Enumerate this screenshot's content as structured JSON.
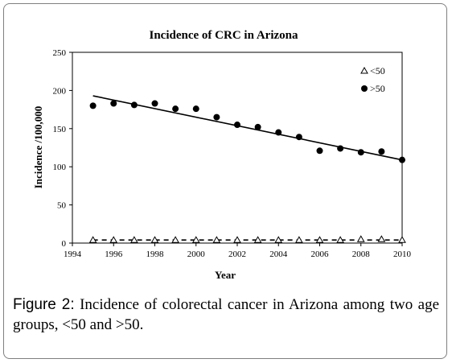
{
  "chart_data": {
    "type": "scatter",
    "title": "Incidence of CRC in Arizona",
    "xlabel": "Year",
    "ylabel": "Incidence /100,000",
    "xlim": [
      1994,
      2010
    ],
    "ylim": [
      0,
      250
    ],
    "x_ticks": [
      1994,
      1996,
      1998,
      2000,
      2002,
      2004,
      2006,
      2008,
      2010
    ],
    "y_ticks": [
      0,
      50,
      100,
      150,
      200,
      250
    ],
    "legend_position": "top-right",
    "grid": false,
    "series": [
      {
        "name": "<50",
        "marker": "open-triangle",
        "x": [
          1995,
          1996,
          1997,
          1998,
          1999,
          2000,
          2001,
          2002,
          2003,
          2004,
          2005,
          2006,
          2007,
          2008,
          2009,
          2010
        ],
        "y": [
          4,
          4,
          4,
          4,
          4,
          4,
          4,
          4,
          4,
          4,
          4,
          4,
          4,
          5,
          5,
          4
        ],
        "trendline": {
          "x": [
            1995,
            2010
          ],
          "y": [
            4,
            4
          ],
          "style": "dashed"
        }
      },
      {
        "name": ">50",
        "marker": "filled-circle",
        "x": [
          1995,
          1996,
          1997,
          1998,
          1999,
          2000,
          2001,
          2002,
          2003,
          2004,
          2005,
          2006,
          2007,
          2008,
          2009,
          2010
        ],
        "y": [
          180,
          183,
          181,
          183,
          176,
          176,
          165,
          155,
          152,
          145,
          139,
          121,
          124,
          119,
          120,
          109
        ],
        "trendline": {
          "x": [
            1995,
            2010
          ],
          "y": [
            193,
            109
          ],
          "style": "solid"
        }
      }
    ]
  },
  "caption": {
    "label": "Figure 2:",
    "text": " Incidence of colorectal cancer in Arizona among two age groups, <50 and >50."
  }
}
